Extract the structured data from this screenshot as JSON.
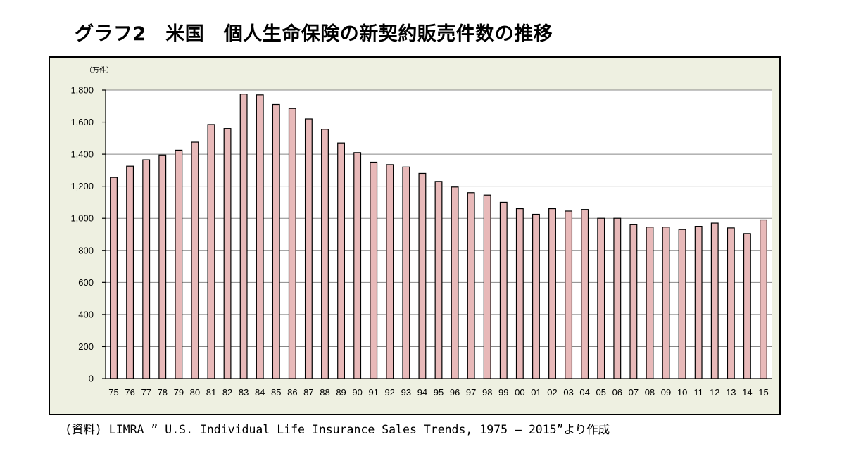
{
  "title": "グラフ2　米国　個人生命保険の新契約販売件数の推移",
  "source_note": "(資料) LIMRA ” U.S. Individual Life Insurance Sales Trends, 1975 – 2015”より作成",
  "chart_data": {
    "type": "bar",
    "unit_label": "（万件）",
    "categories": [
      "75",
      "76",
      "77",
      "78",
      "79",
      "80",
      "81",
      "82",
      "83",
      "84",
      "85",
      "86",
      "87",
      "88",
      "89",
      "90",
      "91",
      "92",
      "93",
      "94",
      "95",
      "96",
      "97",
      "98",
      "99",
      "00",
      "01",
      "02",
      "03",
      "04",
      "05",
      "06",
      "07",
      "08",
      "09",
      "10",
      "11",
      "12",
      "13",
      "14",
      "15"
    ],
    "values": [
      1255,
      1325,
      1365,
      1395,
      1425,
      1475,
      1585,
      1560,
      1775,
      1770,
      1710,
      1685,
      1620,
      1555,
      1470,
      1410,
      1350,
      1335,
      1320,
      1280,
      1230,
      1195,
      1160,
      1145,
      1100,
      1060,
      1025,
      1060,
      1045,
      1055,
      1000,
      1000,
      960,
      945,
      945,
      930,
      950,
      970,
      940,
      905,
      990
    ],
    "ylim": [
      0,
      1800
    ],
    "y_ticks": [
      0,
      200,
      400,
      600,
      800,
      1000,
      1200,
      1400,
      1600,
      1800
    ],
    "y_tick_labels": [
      "0",
      "200",
      "400",
      "600",
      "800",
      "1,000",
      "1,200",
      "1,400",
      "1,600",
      "1,800"
    ],
    "grid": true,
    "colors": {
      "bar_fill": "#e8b9b9",
      "bar_stroke": "#000000",
      "plot_bg": "#ffffff",
      "frame_bg": "#eef0e1",
      "grid": "#888888"
    }
  }
}
